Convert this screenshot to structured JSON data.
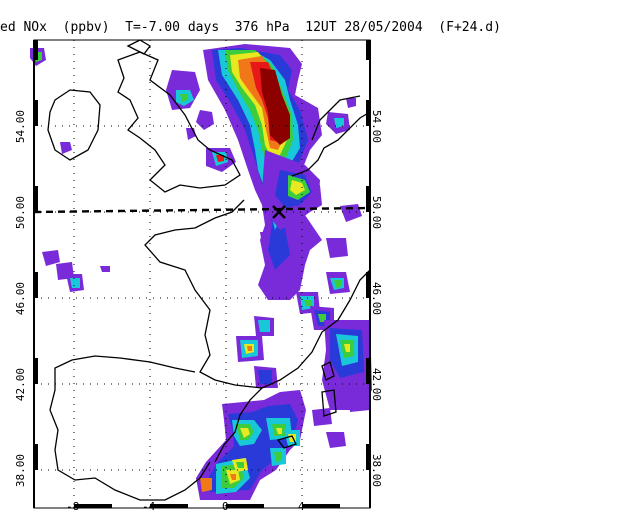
{
  "title": "ed NOx  (ppbv)  T=-7.00 days  376 hPa  12UT 28/05/2004  (F+24.d)",
  "map": {
    "lat_labels_left": [
      "54.00",
      "50.00",
      "46.00",
      "42.00",
      "38.00"
    ],
    "lat_labels_right": [
      "54.00",
      "50.00",
      "46.00",
      "42.00",
      "38.00"
    ],
    "lon_labels": [
      "-8",
      "-4",
      "0",
      "4"
    ],
    "colors": {
      "frame": "#000000",
      "violet": "#7a2bd9",
      "blue": "#2a3ad8",
      "cyan": "#18c8d8",
      "green": "#3ccc3c",
      "yellow": "#e8e820",
      "orange": "#f07818",
      "red": "#e81818",
      "darkred": "#8c0000"
    }
  }
}
